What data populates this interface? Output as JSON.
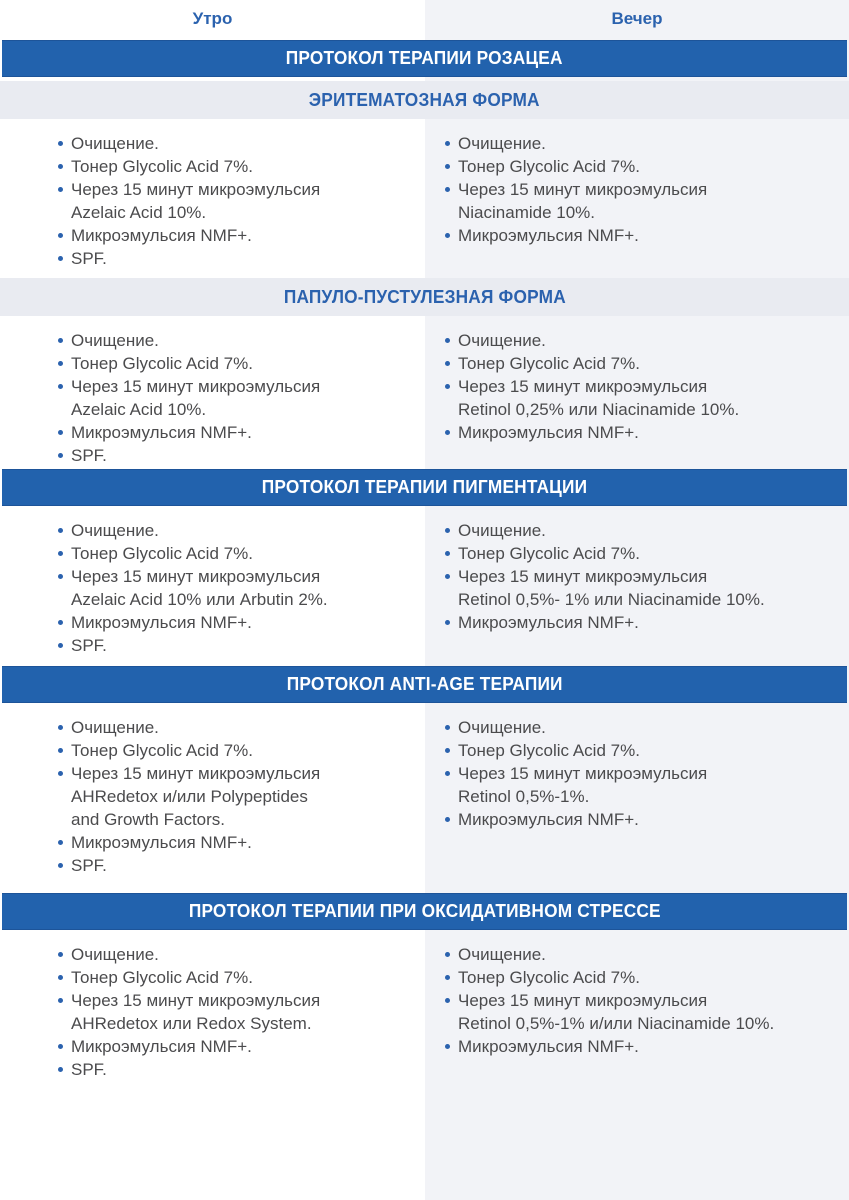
{
  "columns": {
    "morning": "Утро",
    "evening": "Вечер"
  },
  "colors": {
    "banner_blue": "#2262ad",
    "accent_blue": "#2b62ae",
    "light_band": "#e9ebf1",
    "evening_tint": "#f2f3f7",
    "body_text": "#4b4b4d"
  },
  "bullet_icon": "dot",
  "sections": [
    {
      "title": "ПРОТОКОЛ ТЕРАПИИ РОЗАЦЕА",
      "subsections": [
        {
          "title": "ЭРИТЕМАТОЗНАЯ ФОРМА",
          "morning": [
            "Очищение.",
            "Тонер Glycolic Acid 7%.",
            "Через 15 минут микроэмульсия\nAzelaic Acid 10%.",
            "Микроэмульсия NMF+.",
            "SPF."
          ],
          "evening": [
            "Очищение.",
            "Тонер Glycolic Acid 7%.",
            "Через 15 минут микроэмульсия\nNiacinamide 10%.",
            "Микроэмульсия NMF+."
          ]
        },
        {
          "title": "ПАПУЛО-ПУСТУЛЕЗНАЯ ФОРМА",
          "morning": [
            "Очищение.",
            "Тонер Glycolic Acid 7%.",
            "Через 15 минут микроэмульсия\nAzelaic Acid 10%.",
            "Микроэмульсия NMF+.",
            "SPF."
          ],
          "evening": [
            "Очищение.",
            "Тонер Glycolic Acid 7%.",
            "Через 15 минут микроэмульсия\nRetinol 0,25% или Niacinamide 10%.",
            "Микроэмульсия NMF+."
          ]
        }
      ]
    },
    {
      "title": "ПРОТОКОЛ ТЕРАПИИ ПИГМЕНТАЦИИ",
      "morning": [
        "Очищение.",
        "Тонер Glycolic Acid 7%.",
        "Через 15 минут микроэмульсия\nAzelaic Acid 10% или Arbutin 2%.",
        "Микроэмульсия NMF+.",
        "SPF."
      ],
      "evening": [
        "Очищение.",
        "Тонер Glycolic Acid 7%.",
        "Через 15 минут микроэмульсия\nRetinol 0,5%- 1% или Niacinamide 10%.",
        "Микроэмульсия NMF+."
      ]
    },
    {
      "title": "ПРОТОКОЛ ANTI-AGE ТЕРАПИИ",
      "morning": [
        "Очищение.",
        "Тонер Glycolic Acid 7%.",
        "Через 15 минут микроэмульсия\nAHRedetox и/или Polypeptides\nand Growth Factors.",
        "Микроэмульсия NMF+.",
        "SPF."
      ],
      "evening": [
        "Очищение.",
        "Тонер Glycolic Acid 7%.",
        "Через 15 минут микроэмульсия\nRetinol 0,5%-1%.",
        "Микроэмульсия NMF+."
      ]
    },
    {
      "title": "ПРОТОКОЛ ТЕРАПИИ ПРИ ОКСИДАТИВНОМ СТРЕССЕ",
      "morning": [
        "Очищение.",
        "Тонер Glycolic Acid 7%.",
        "Через 15 минут микроэмульсия\nAHRedetox или Redox System.",
        "Микроэмульсия NMF+.",
        "SPF."
      ],
      "evening": [
        "Очищение.",
        "Тонер Glycolic Acid 7%.",
        "Через 15 минут микроэмульсия\nRetinol 0,5%-1% и/или Niacinamide 10%.",
        "Микроэмульсия NMF+."
      ]
    }
  ]
}
